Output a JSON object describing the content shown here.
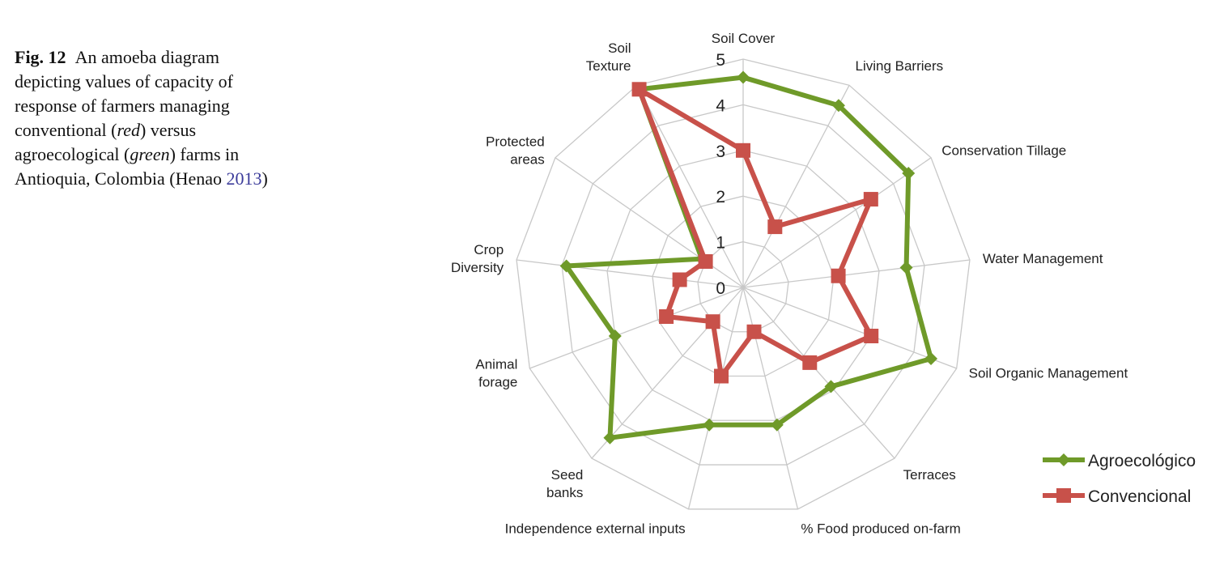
{
  "caption": {
    "fig_label": "Fig. 12",
    "text_1": "An amoeba diagram depicting values of capacity of response of farmers managing conventional (",
    "red_word": "red",
    "text_2": ") versus agroecological (",
    "green_word": "green",
    "text_3": ") farms in Antioquia, Colombia (Henao ",
    "cite_year": "2013",
    "text_4": ")"
  },
  "chart_data": {
    "type": "radar",
    "categories": [
      [
        "Soil Cover"
      ],
      [
        "Living Barriers"
      ],
      [
        "Conservation Tillage"
      ],
      [
        "Water Management"
      ],
      [
        "Soil Organic Management"
      ],
      [
        "Terraces"
      ],
      [
        "% Food produced on-farm"
      ],
      [
        "Independence external inputs"
      ],
      [
        "Seed",
        "banks"
      ],
      [
        "Animal",
        "forage"
      ],
      [
        "Crop",
        "Diversity"
      ],
      [
        "Protected",
        "areas"
      ],
      [
        "Soil",
        "Texture"
      ]
    ],
    "rlim": [
      0,
      5
    ],
    "ticks": [
      "0",
      "1",
      "2",
      "3",
      "4",
      "5"
    ],
    "grid": true,
    "legend_position": "bottom-right",
    "series": [
      {
        "name": "Agroecológico",
        "color": "#6f9a29",
        "marker": "diamond",
        "values": [
          4.6,
          4.5,
          4.4,
          3.6,
          4.4,
          2.9,
          3.1,
          3.1,
          4.4,
          3.0,
          3.9,
          1.1,
          4.9
        ]
      },
      {
        "name": "Convencional",
        "color": "#c8514a",
        "marker": "square",
        "values": [
          3.0,
          1.5,
          3.4,
          2.1,
          3.0,
          2.2,
          1.0,
          2.0,
          1.0,
          1.8,
          1.4,
          1.0,
          4.9
        ]
      }
    ]
  }
}
